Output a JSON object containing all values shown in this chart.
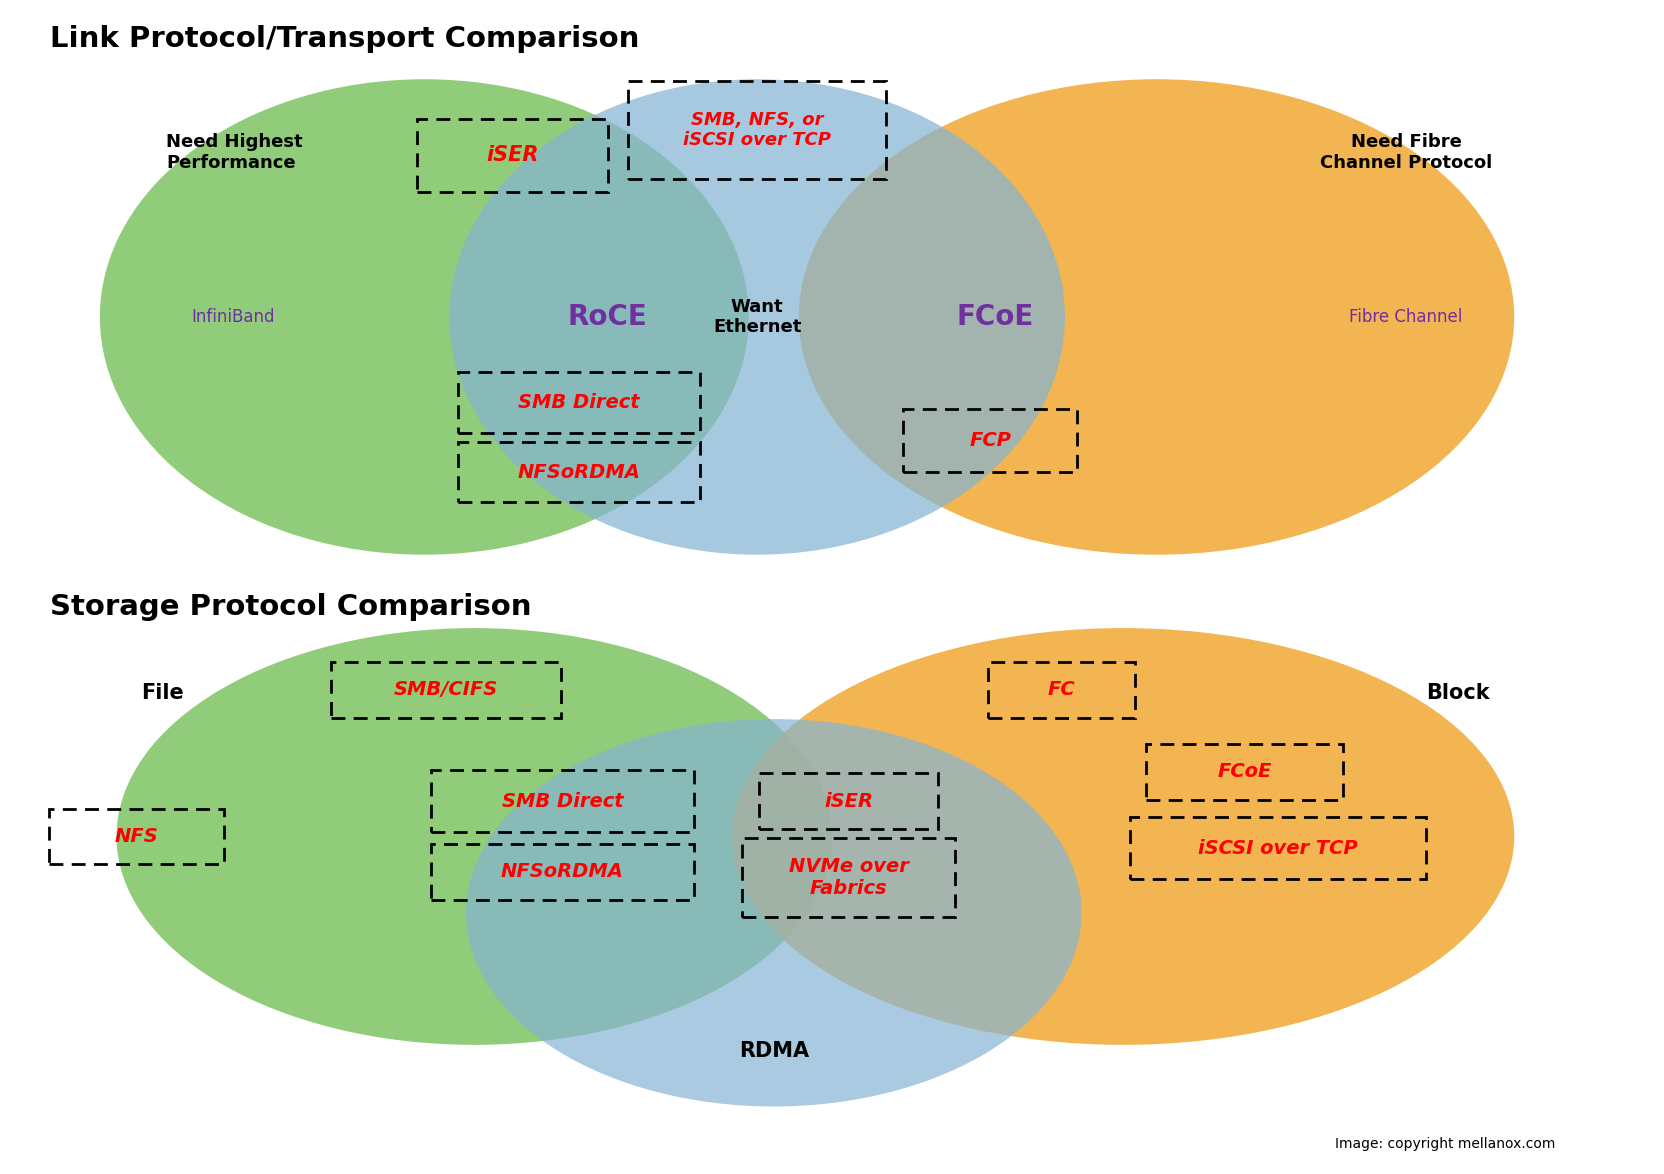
{
  "title1": "Link Protocol/Transport Comparison",
  "title2": "Storage Protocol Comparison",
  "copyright": "Image: copyright mellanox.com",
  "colors": {
    "green": "#7DC462",
    "blue": "#85B4D4",
    "orange": "#F0A832",
    "white": "#FFFFFF",
    "black": "#000000",
    "red": "#CC0000",
    "purple": "#7030A0"
  }
}
